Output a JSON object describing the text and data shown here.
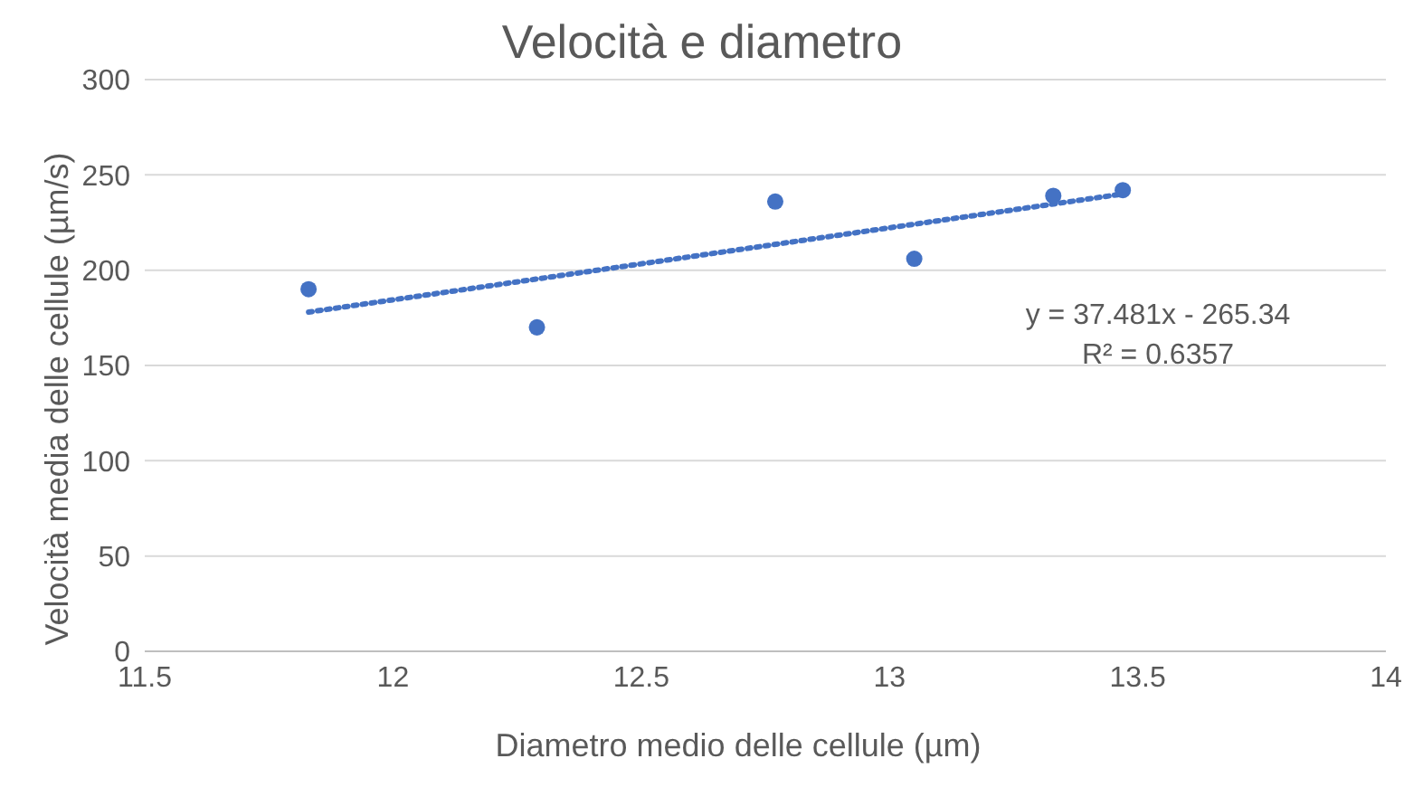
{
  "chart_data": {
    "type": "scatter",
    "title": "Velocità e diametro",
    "xlabel": "Diametro medio delle cellule (µm)",
    "ylabel": "Velocità media delle cellule (µm/s)",
    "x": [
      11.83,
      12.29,
      12.77,
      13.05,
      13.33,
      13.47
    ],
    "series": [
      {
        "color": "#4472c4",
        "values": [
          190,
          170,
          236,
          206,
          239,
          242
        ],
        "marker": "circle"
      },
      {
        "type": "line",
        "color": "#4472c4",
        "x": [
          11.83,
          13.47
        ],
        "values": [
          178,
          240
        ],
        "line_style": "dotted",
        "marker": "none"
      }
    ],
    "xlim": [
      11.5,
      14
    ],
    "xticks": [
      11.5,
      12,
      12.5,
      13,
      13.5,
      14
    ],
    "ylim": [
      0,
      300
    ],
    "yticks": [
      0,
      50,
      100,
      150,
      200,
      250,
      300
    ],
    "grid": "y",
    "annotations": [
      "y = 37.481x - 265.34",
      "R² = 0.6357"
    ]
  }
}
